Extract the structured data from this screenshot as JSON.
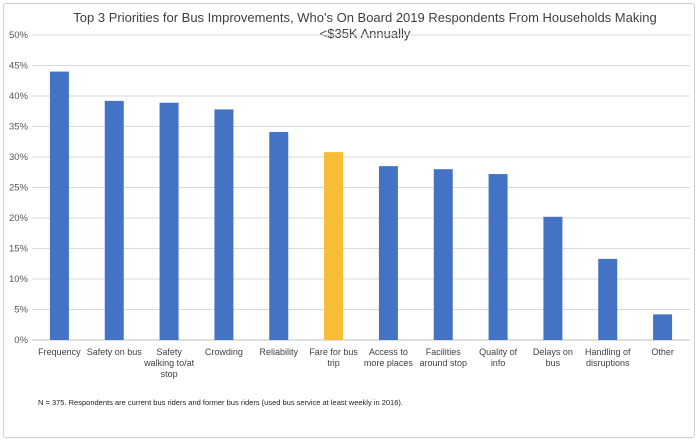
{
  "chart_data": {
    "type": "bar",
    "title_lines": [
      "Top 3 Priorities for Bus Improvements, Who's On Board 2019 Respondents From Households Making",
      "<$35K Annually"
    ],
    "categories": [
      "Frequency",
      "Safety on bus",
      "Safety walking to/at stop",
      "Crowding",
      "Reliability",
      "Fare for bus trip",
      "Access to more places",
      "Facilities around stop",
      "Quality of info",
      "Delays on bus",
      "Handling of disruptions",
      "Other"
    ],
    "category_lines": [
      [
        "Frequency"
      ],
      [
        "Safety on bus"
      ],
      [
        "Safety",
        "walking to/at",
        "stop"
      ],
      [
        "Crowding"
      ],
      [
        "Reliability"
      ],
      [
        "Fare for bus",
        "trip"
      ],
      [
        "Access to",
        "more places"
      ],
      [
        "Facilities",
        "around stop"
      ],
      [
        "Quality of",
        "info"
      ],
      [
        "Delays on",
        "bus"
      ],
      [
        "Handling of",
        "disruptions"
      ],
      [
        "Other"
      ]
    ],
    "values": [
      44.0,
      39.2,
      38.9,
      37.8,
      34.1,
      30.8,
      28.5,
      28.0,
      27.2,
      20.2,
      13.3,
      4.2
    ],
    "highlight_index": 5,
    "colors": {
      "bar": "#4472C4",
      "highlight": "#F7BE35",
      "grid": "#D9D9D9"
    },
    "ylim": [
      0,
      50
    ],
    "yticks": [
      "0%",
      "5%",
      "10%",
      "15%",
      "20%",
      "25%",
      "30%",
      "35%",
      "40%",
      "45%",
      "50%"
    ],
    "grid": true,
    "legend": "none"
  },
  "footnote": "N = 375. Respondents are current bus riders and former bus riders (used bus service at least weekly in 2016)."
}
